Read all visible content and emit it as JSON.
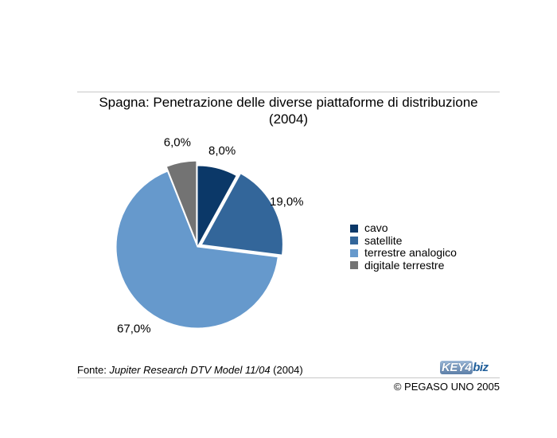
{
  "chart_data": {
    "type": "pie",
    "title": "Spagna: Penetrazione delle diverse piattaforme di distribuzione (2004)",
    "title_line1": "Spagna: Penetrazione delle diverse piattaforme di distribuzione",
    "title_line2": "(2004)",
    "slices": [
      {
        "label": "cavo",
        "value": 8.0,
        "display": "8,0%",
        "color": "#0b3868",
        "exploded": false
      },
      {
        "label": "satellite",
        "value": 19.0,
        "display": "19,0%",
        "color": "#33669a",
        "exploded": true
      },
      {
        "label": "terrestre analogico",
        "value": 67.0,
        "display": "67,0%",
        "color": "#6699cc",
        "exploded": false
      },
      {
        "label": "digitale terrestre",
        "value": 6.0,
        "display": "6,0%",
        "color": "#737373",
        "exploded": true
      }
    ],
    "legend_position": "right"
  },
  "footer": {
    "source_prefix": "Fonte: ",
    "source_italic": "Jupiter Research DTV Model 11/04",
    "source_suffix": " (2004)",
    "copyright": "© PEGASO UNO 2005"
  },
  "logo": {
    "key": "KEY4",
    "biz": "biz"
  }
}
